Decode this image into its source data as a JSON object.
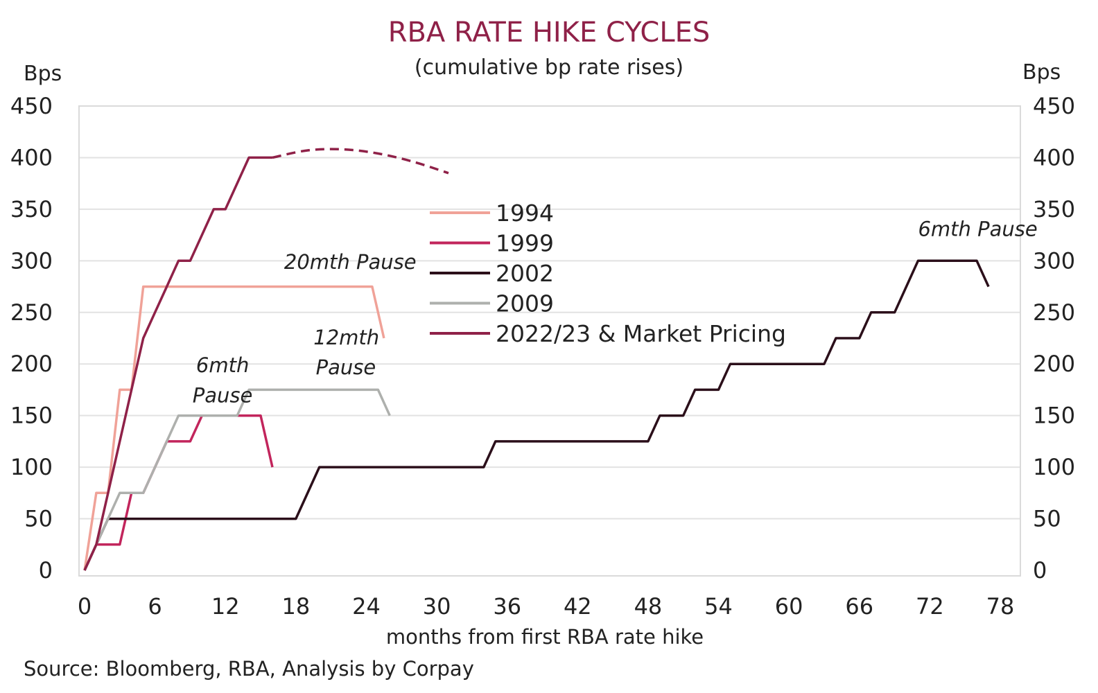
{
  "chart_data": {
    "type": "line",
    "title": "RBA RATE HIKE CYCLES",
    "subtitle": "(cumulative bp rate rises)",
    "y_unit_left": "Bps",
    "y_unit_right": "Bps",
    "xlabel": "months from first RBA rate hike",
    "source": "Source: Bloomberg, RBA, Analysis by Corpay",
    "xlim": [
      0,
      78
    ],
    "ylim": [
      0,
      450
    ],
    "x_ticks": [
      0,
      6,
      12,
      18,
      24,
      30,
      36,
      42,
      48,
      54,
      60,
      66,
      72,
      78
    ],
    "y_ticks": [
      0,
      50,
      100,
      150,
      200,
      250,
      300,
      350,
      400,
      450
    ],
    "grid": true,
    "legend_position": "center",
    "series": [
      {
        "name": "1994",
        "color": "#f0a298",
        "points": [
          [
            0,
            0
          ],
          [
            1,
            75
          ],
          [
            2,
            75
          ],
          [
            3,
            175
          ],
          [
            4,
            175
          ],
          [
            5,
            275
          ],
          [
            24.5,
            275
          ],
          [
            25.5,
            225
          ]
        ]
      },
      {
        "name": "1999",
        "color": "#c2255c",
        "points": [
          [
            0,
            0
          ],
          [
            1,
            25
          ],
          [
            3,
            25
          ],
          [
            4,
            75
          ],
          [
            5,
            75
          ],
          [
            7,
            125
          ],
          [
            9,
            125
          ],
          [
            10,
            150
          ],
          [
            15,
            150
          ],
          [
            16,
            100
          ]
        ]
      },
      {
        "name": "2002",
        "color": "#2b0f1a",
        "points": [
          [
            0,
            0
          ],
          [
            2,
            50
          ],
          [
            18,
            50
          ],
          [
            20,
            100
          ],
          [
            34,
            100
          ],
          [
            35,
            125
          ],
          [
            48,
            125
          ],
          [
            49,
            150
          ],
          [
            51,
            150
          ],
          [
            52,
            175
          ],
          [
            54,
            175
          ],
          [
            55,
            200
          ],
          [
            63,
            200
          ],
          [
            64,
            225
          ],
          [
            66,
            225
          ],
          [
            67,
            250
          ],
          [
            69,
            250
          ],
          [
            71,
            300
          ],
          [
            76,
            300
          ],
          [
            77,
            275
          ]
        ]
      },
      {
        "name": "2009",
        "color": "#aeb0ad",
        "points": [
          [
            0,
            0
          ],
          [
            1,
            25
          ],
          [
            3,
            75
          ],
          [
            5,
            75
          ],
          [
            8,
            150
          ],
          [
            13,
            150
          ],
          [
            14,
            175
          ],
          [
            25,
            175
          ],
          [
            26,
            150
          ]
        ]
      },
      {
        "name": "2022/23 & Market Pricing",
        "color": "#8f2148",
        "points": [
          [
            0,
            0
          ],
          [
            1,
            25
          ],
          [
            2,
            75
          ],
          [
            3,
            125
          ],
          [
            4,
            175
          ],
          [
            5,
            225
          ],
          [
            6,
            250
          ],
          [
            7,
            275
          ],
          [
            8,
            300
          ],
          [
            9,
            300
          ],
          [
            11,
            350
          ],
          [
            12,
            350
          ],
          [
            14,
            400
          ],
          [
            16,
            400
          ]
        ],
        "market_pricing": [
          [
            16,
            400
          ],
          [
            19,
            407
          ],
          [
            22,
            408
          ],
          [
            25,
            404
          ],
          [
            28,
            396
          ],
          [
            31,
            385
          ]
        ]
      }
    ],
    "annotations": [
      {
        "text": "20mth Pause",
        "x": 17,
        "y": 292
      },
      {
        "text": "6mth",
        "x": 9.5,
        "y": 192
      },
      {
        "text": "Pause",
        "x": 9.2,
        "y": 163
      },
      {
        "text": "12mth",
        "x": 19.5,
        "y": 219
      },
      {
        "text": "Pause",
        "x": 19.7,
        "y": 190
      },
      {
        "text": "6mth Pause",
        "x": 71,
        "y": 324
      }
    ]
  }
}
